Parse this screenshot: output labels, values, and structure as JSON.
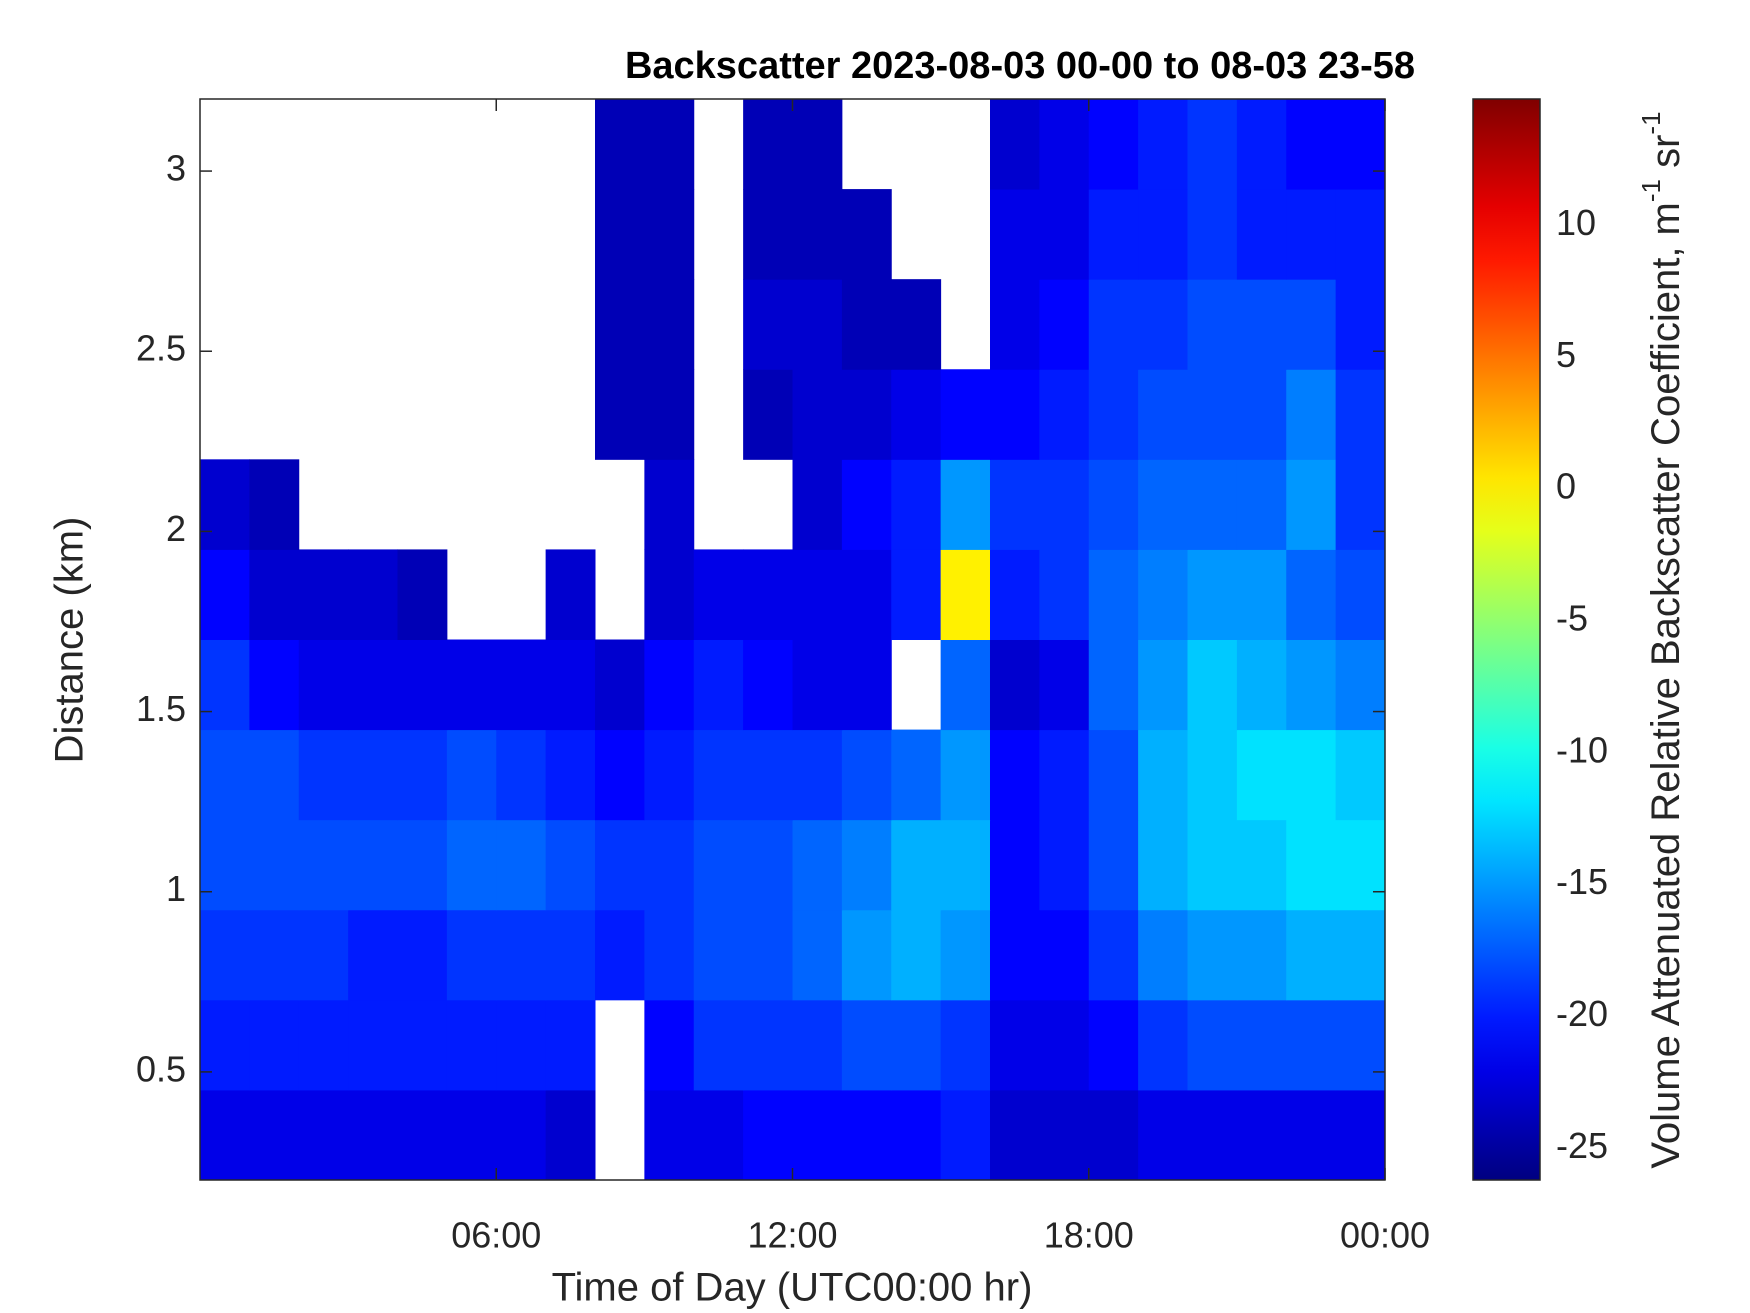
{
  "chart_data": {
    "type": "heatmap",
    "title": "Backscatter 2023-08-03 00-00 to 08-03 23-58",
    "x_label": "Time of Day (UTC00:00 hr)",
    "y_label": "Distance (km)",
    "colorbar_label": [
      "Volume Attenuated Relative Backscatter Coefficient, m",
      "-1",
      " sr",
      "-1"
    ],
    "colormap": "jet",
    "xlim": [
      0,
      24
    ],
    "xticks": [
      {
        "value": 6,
        "label": "06:00"
      },
      {
        "value": 12,
        "label": "12:00"
      },
      {
        "value": 18,
        "label": "18:00"
      },
      {
        "value": 24,
        "label": "00:00"
      }
    ],
    "ylim": [
      0.2,
      3.2
    ],
    "yticks": [
      0.5,
      1,
      1.5,
      2,
      2.5,
      3
    ],
    "clim": [
      -26.2,
      14.8
    ],
    "cticks": [
      -25,
      -20,
      -15,
      -10,
      -5,
      0,
      5,
      10
    ],
    "x_bins": [
      0,
      1,
      2,
      3,
      4,
      5,
      6,
      7,
      8,
      9,
      10,
      11,
      12,
      13,
      14,
      15,
      16,
      17,
      18,
      19,
      20,
      21,
      22,
      23,
      24
    ],
    "y_bins": [
      0.2,
      0.45,
      0.7,
      0.95,
      1.2,
      1.45,
      1.7,
      1.95,
      2.2,
      2.45,
      2.7,
      2.95,
      3.2
    ],
    "values": [
      [
        -22,
        -22,
        -22,
        -22,
        -22,
        -22,
        -22,
        -23,
        null,
        -22,
        -22,
        -21,
        -21,
        -21,
        -21,
        -20,
        -23,
        -23,
        -23,
        -22,
        -22,
        -22,
        -22,
        -22
      ],
      [
        -20,
        -20,
        -20,
        -20,
        -20,
        -20,
        -20,
        -20,
        null,
        -21,
        -19,
        -19,
        -19,
        -18,
        -18,
        -19,
        -22,
        -22,
        -21,
        -19,
        -18,
        -18,
        -18,
        -18
      ],
      [
        -19,
        -19,
        -19,
        -20,
        -20,
        -19,
        -19,
        -19,
        -20,
        -19,
        -18,
        -18,
        -17,
        -15,
        -14,
        -15,
        -21,
        -21,
        -19,
        -16,
        -15,
        -15,
        -14,
        -14
      ],
      [
        -18,
        -18,
        -18,
        -18,
        -18,
        -17,
        -17,
        -18,
        -19,
        -19,
        -18,
        -18,
        -17,
        -16,
        -14,
        -14,
        -21,
        -20,
        -18,
        -14,
        -13,
        -13,
        -12,
        -12
      ],
      [
        -18,
        -18,
        -19,
        -19,
        -19,
        -18,
        -19,
        -20,
        -21,
        -20,
        -19,
        -19,
        -19,
        -18,
        -17,
        -15,
        -21,
        -20,
        -18,
        -14,
        -13,
        -12,
        -12,
        -13
      ],
      [
        -19,
        -21,
        -22,
        -22,
        -22,
        -22,
        -22,
        -22,
        -23,
        -21,
        -20,
        -21,
        -22,
        -22,
        null,
        -17,
        -23,
        -22,
        -17,
        -15,
        -13,
        -14,
        -15,
        -16
      ],
      [
        -21,
        -23,
        -23,
        -23,
        -24,
        null,
        null,
        -23,
        null,
        -23,
        -22,
        -22,
        -22,
        -22,
        -20,
        0,
        -20,
        -19,
        -17,
        -16,
        -15,
        -15,
        -17,
        -18
      ],
      [
        -23,
        -24,
        null,
        null,
        null,
        null,
        null,
        null,
        null,
        -23,
        null,
        null,
        -23,
        -21,
        -20,
        -15,
        -19,
        -19,
        -18,
        -17,
        -17,
        -17,
        -15,
        -19
      ],
      [
        null,
        null,
        null,
        null,
        null,
        null,
        null,
        null,
        -24,
        -24,
        null,
        -24,
        -23,
        -23,
        -22,
        -21,
        -21,
        -20,
        -19,
        -18,
        -18,
        -18,
        -16,
        -19
      ],
      [
        null,
        null,
        null,
        null,
        null,
        null,
        null,
        null,
        -24,
        -24,
        null,
        -23,
        -23,
        -24,
        -24,
        null,
        -22,
        -21,
        -19,
        -19,
        -18,
        -18,
        -18,
        -20
      ],
      [
        null,
        null,
        null,
        null,
        null,
        null,
        null,
        null,
        -24,
        -24,
        null,
        -24,
        -24,
        -24,
        null,
        null,
        -22,
        -22,
        -20,
        -20,
        -19,
        -20,
        -20,
        -20
      ],
      [
        null,
        null,
        null,
        null,
        null,
        null,
        null,
        null,
        -24,
        -24,
        null,
        -24,
        -24,
        null,
        null,
        null,
        -23,
        -22,
        -21,
        -20,
        -19,
        -20,
        -21,
        -21
      ]
    ]
  }
}
